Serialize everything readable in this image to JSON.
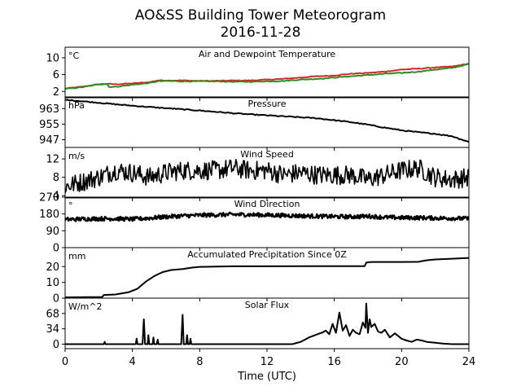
{
  "figure": {
    "title_line1": "AO&SS Building Tower Meteorogram",
    "title_line2": "2016-11-28",
    "xlabel": "Time (UTC)"
  },
  "chart_data": [
    {
      "type": "line",
      "title": "Air and Dewpoint Temperature",
      "unit": "°C",
      "xlim": [
        0,
        24
      ],
      "ylim": [
        0.5,
        12.5
      ],
      "yticks": [
        2,
        6,
        10
      ],
      "series": [
        {
          "color": "#d62728",
          "style": "line",
          "x": [
            0,
            1,
            2,
            2.5,
            3,
            4,
            5,
            5.5,
            6,
            7,
            8,
            9,
            10,
            11,
            12,
            13,
            14,
            15,
            16,
            17,
            18,
            19,
            20,
            21,
            22,
            23,
            24
          ],
          "y": [
            2.7,
            3.1,
            3.7,
            3.8,
            3.7,
            3.9,
            4.2,
            4.6,
            4.6,
            4.6,
            4.5,
            4.5,
            4.6,
            4.6,
            4.8,
            5.0,
            5.3,
            5.6,
            5.8,
            6.2,
            6.4,
            6.7,
            7.2,
            7.4,
            7.7,
            7.9,
            8.6
          ]
        },
        {
          "color": "#2c8c1e",
          "style": "line",
          "x": [
            0,
            1,
            2,
            2.5,
            2.6,
            3,
            4,
            5,
            5.5,
            6,
            7,
            8,
            9,
            10,
            11,
            12,
            13,
            14,
            15,
            16,
            17,
            18,
            19,
            20,
            21,
            22,
            23,
            24
          ],
          "y": [
            2.6,
            3.0,
            3.7,
            3.8,
            3.1,
            3.1,
            3.6,
            4.0,
            4.4,
            4.5,
            4.4,
            4.4,
            4.4,
            4.3,
            4.3,
            4.4,
            4.5,
            4.8,
            5.0,
            5.3,
            5.6,
            5.9,
            6.2,
            6.4,
            6.7,
            7.2,
            7.6,
            8.5
          ]
        }
      ]
    },
    {
      "type": "line",
      "title": "Pressure",
      "unit": "hPa",
      "xlim": [
        0,
        24
      ],
      "ylim": [
        943,
        969
      ],
      "yticks": [
        947,
        955,
        963
      ],
      "series": [
        {
          "color": "#000000",
          "style": "line",
          "x": [
            0,
            1,
            2,
            3,
            4,
            5,
            6,
            7,
            8,
            9,
            10,
            11,
            12,
            13,
            14,
            15,
            16,
            17,
            18,
            19,
            20,
            21,
            22,
            23,
            24
          ],
          "y": [
            967.5,
            966.8,
            966.0,
            965.2,
            964.5,
            963.8,
            963.2,
            962.6,
            962.0,
            961.3,
            960.6,
            960.0,
            959.5,
            959.0,
            958.5,
            958.0,
            957.0,
            956.0,
            954.7,
            953.2,
            951.8,
            950.8,
            950.0,
            948.8,
            945.8
          ]
        }
      ]
    },
    {
      "type": "line",
      "title": "Wind Speed",
      "unit": "m/s",
      "xlim": [
        0,
        24
      ],
      "ylim": [
        3.5,
        14.5
      ],
      "yticks": [
        4,
        8,
        12
      ],
      "series": [
        {
          "color": "#000000",
          "style": "noisy",
          "x": [
            0,
            1,
            2,
            3,
            4,
            5,
            6,
            7,
            8,
            9,
            10,
            11,
            12,
            13,
            14,
            15,
            16,
            17,
            18,
            19,
            20,
            21,
            22,
            23,
            24
          ],
          "y": [
            6.0,
            7.0,
            8.0,
            9.5,
            9.0,
            8.0,
            9.0,
            9.5,
            9.5,
            9.5,
            10.0,
            9.5,
            9.5,
            8.5,
            9.0,
            8.5,
            8.5,
            8.5,
            7.5,
            8.5,
            9.5,
            10.0,
            8.0,
            7.5,
            8.0
          ]
        }
      ]
    },
    {
      "type": "line",
      "title": "Wind Direction",
      "unit": "°",
      "xlim": [
        0,
        24
      ],
      "ylim": [
        0,
        270
      ],
      "yticks": [
        0,
        90,
        180,
        270
      ],
      "series": [
        {
          "color": "#000000",
          "style": "thick",
          "x": [
            0,
            1,
            2,
            3,
            4,
            5,
            6,
            7,
            8,
            9,
            10,
            11,
            12,
            13,
            14,
            15,
            16,
            17,
            18,
            19,
            20,
            21,
            22,
            23,
            24
          ],
          "y": [
            150,
            153,
            155,
            155,
            152,
            158,
            165,
            170,
            173,
            175,
            177,
            176,
            174,
            172,
            170,
            168,
            166,
            165,
            168,
            162,
            160,
            160,
            158,
            157,
            155
          ]
        }
      ]
    },
    {
      "type": "line",
      "title": "Accumulated Precipitation Since 0Z",
      "unit": "mm",
      "xlim": [
        0,
        24
      ],
      "ylim": [
        0,
        32
      ],
      "yticks": [
        0,
        10,
        20
      ],
      "series": [
        {
          "color": "#000000",
          "style": "line",
          "x": [
            0,
            2.2,
            2.3,
            3.0,
            3.8,
            4.3,
            4.8,
            5.3,
            5.8,
            6.3,
            7.0,
            7.5,
            8.0,
            9.0,
            10.0,
            12.0,
            15.0,
            17.8,
            17.9,
            18.1,
            18.3,
            20.0,
            21.0,
            21.5,
            22.0,
            23.0,
            24.0
          ],
          "y": [
            0.5,
            0.7,
            2.0,
            2.3,
            3.8,
            6.0,
            10.5,
            14.0,
            16.5,
            17.8,
            18.5,
            19.3,
            19.8,
            20.0,
            20.2,
            20.2,
            20.3,
            20.3,
            22.5,
            22.8,
            22.9,
            22.9,
            23.0,
            24.0,
            24.5,
            25.0,
            25.5
          ]
        }
      ]
    },
    {
      "type": "line",
      "title": "Solar Flux",
      "unit": "W/m^2",
      "xlim": [
        0,
        24
      ],
      "ylim": [
        -10,
        102
      ],
      "yticks": [
        0,
        34,
        68
      ],
      "series": [
        {
          "color": "#000000",
          "style": "line",
          "x": [
            0,
            2.3,
            2.35,
            2.4,
            4.2,
            4.25,
            4.3,
            4.6,
            4.68,
            4.75,
            4.9,
            4.95,
            5.0,
            5.2,
            5.25,
            5.3,
            5.45,
            5.5,
            5.55,
            6.9,
            6.98,
            7.05,
            7.2,
            7.25,
            7.3,
            7.4,
            7.45,
            7.5,
            13.5,
            14.0,
            14.5,
            15.0,
            15.3,
            15.5,
            15.7,
            15.9,
            16.1,
            16.3,
            16.5,
            16.7,
            16.9,
            17.1,
            17.3,
            17.5,
            17.7,
            17.85,
            17.9,
            18.0,
            18.1,
            18.2,
            18.4,
            18.6,
            18.8,
            19.0,
            19.3,
            19.6,
            20.0,
            20.3,
            20.6,
            20.9,
            21.2,
            21.5,
            22.0,
            22.5,
            23.0,
            24.0
          ],
          "y": [
            0,
            0,
            5,
            0,
            0,
            12,
            0,
            0,
            55,
            0,
            0,
            20,
            0,
            0,
            15,
            0,
            0,
            10,
            0,
            0,
            65,
            0,
            0,
            20,
            0,
            0,
            12,
            0,
            0,
            5,
            15,
            22,
            26,
            30,
            22,
            45,
            25,
            70,
            30,
            42,
            18,
            32,
            25,
            22,
            48,
            36,
            90,
            25,
            55,
            38,
            45,
            28,
            25,
            32,
            15,
            24,
            12,
            8,
            5,
            10,
            8,
            5,
            3,
            1,
            0,
            0
          ]
        }
      ]
    }
  ]
}
